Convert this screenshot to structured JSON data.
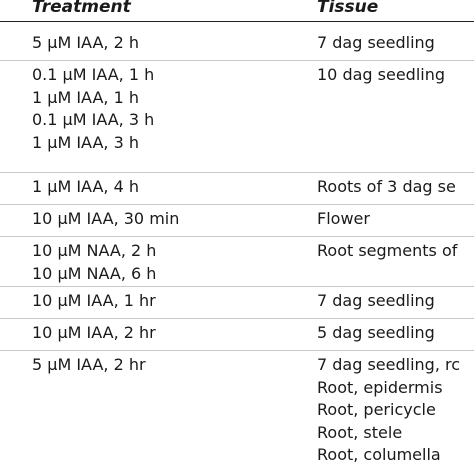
{
  "table": {
    "headers": {
      "treatment": "Treatment",
      "tissue": "Tissue"
    },
    "rows": [
      {
        "treatment": [
          "5 μM IAA, 2 h"
        ],
        "tissue": [
          "7 dag seedling"
        ]
      },
      {
        "treatment": [
          "0.1 μM IAA, 1 h",
          "1 μM IAA, 1 h",
          "0.1 μM IAA, 3 h",
          "1 μM IAA, 3 h"
        ],
        "tissue": [
          "10 dag seedling"
        ]
      },
      {
        "treatment": [
          "1 μM IAA, 4 h"
        ],
        "tissue": [
          "Roots of 3 dag se"
        ]
      },
      {
        "treatment": [
          "10 μM IAA, 30 min"
        ],
        "tissue": [
          "Flower"
        ]
      },
      {
        "treatment": [
          "10 μM NAA, 2 h",
          "10 μM NAA, 6 h"
        ],
        "tissue": [
          "Root segments of"
        ]
      },
      {
        "treatment": [
          "10 μM IAA, 1 hr"
        ],
        "tissue": [
          "7 dag seedling"
        ]
      },
      {
        "treatment": [
          "10 μM IAA, 2 hr"
        ],
        "tissue": [
          "5 dag seedling"
        ]
      },
      {
        "treatment": [
          "5 μM IAA, 2 hr"
        ],
        "tissue": [
          "7 dag seedling, rc",
          "Root, epidermis",
          "Root, pericycle",
          "Root, stele",
          "Root, columella"
        ]
      }
    ]
  }
}
